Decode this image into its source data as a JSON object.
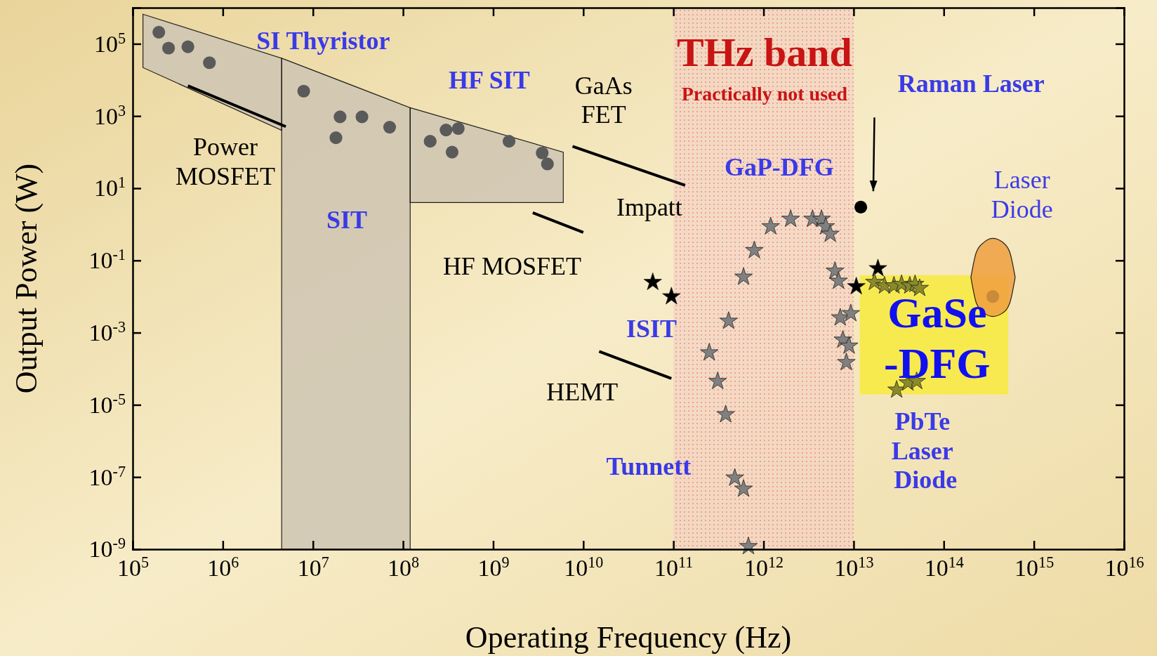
{
  "chart_data": {
    "type": "scatter",
    "xlabel": "Operating Frequency (Hz)",
    "ylabel": "Output Power (W)",
    "log": "xy",
    "grid": false,
    "xlim": [
      100000.0,
      1e+16
    ],
    "ylim": [
      1e-09,
      1000000.0
    ],
    "xticks": [
      {
        "value": 100000.0,
        "label": "10$^{5}$"
      },
      {
        "value": 1000000.0,
        "label": "10$^{6}$"
      },
      {
        "value": 10000000.0,
        "label": "10$^{7}$"
      },
      {
        "value": 100000000.0,
        "label": "10$^{8}$"
      },
      {
        "value": 1000000000.0,
        "label": "10$^{9}$"
      },
      {
        "value": 10000000000.0,
        "label": "10$^{10}$"
      },
      {
        "value": 100000000000.0,
        "label": "10$^{11}$"
      },
      {
        "value": 1000000000000.0,
        "label": "10$^{12}$"
      },
      {
        "value": 10000000000000.0,
        "label": "10$^{13}$"
      },
      {
        "value": 100000000000000.0,
        "label": "10$^{14}$"
      },
      {
        "value": 1000000000000000.0,
        "label": "10$^{15}$"
      },
      {
        "value": 1e+16,
        "label": "10$^{16}$"
      }
    ],
    "yticks": [
      {
        "value": 1e-09,
        "label": "10$^{-9}$"
      },
      {
        "value": 1e-07,
        "label": "10$^{-7}$"
      },
      {
        "value": 1e-05,
        "label": "10$^{-5}$"
      },
      {
        "value": 0.001,
        "label": "10$^{-3}$"
      },
      {
        "value": 0.1,
        "label": "10$^{-1}$"
      },
      {
        "value": 10,
        "label": "10$^{1}$"
      },
      {
        "value": 1000,
        "label": "10$^{3}$"
      },
      {
        "value": 100000.0,
        "label": "10$^{5}$"
      }
    ],
    "bands": [
      {
        "axis": "x",
        "from": 100000000000.0,
        "to": 10000000000000.0,
        "color": "#f4cfc4"
      }
    ],
    "series": [
      {
        "type": "area",
        "color": "#cfc6b4",
        "x": [
          130000.0,
          4500000.0
        ],
        "values": [
          null,
          null
        ],
        "upper": [
          660000.0,
          40000.0
        ],
        "lower": [
          22000.0,
          400.0
        ]
      },
      {
        "type": "area",
        "color": "#cfc6b4",
        "x": [
          4500000.0,
          120000000.0
        ],
        "values": [
          40000.0,
          1700.0
        ]
      },
      {
        "type": "area",
        "color": "#cfc6b4",
        "x": [
          120000000.0,
          6000000000.0
        ],
        "values": [
          null,
          null
        ],
        "upper": [
          1700.0,
          100.0
        ],
        "lower": [
          4,
          4
        ]
      },
      {
        "type": "area",
        "color": "#f0a040",
        "x": [
          200000000000000.0,
          230000000000000.0,
          280000000000000.0,
          350000000000000.0,
          450000000000000.0,
          540000000000000.0,
          620000000000000.0
        ],
        "values": [
          null,
          null,
          null,
          null,
          null,
          null,
          null
        ],
        "upper": [
          0.034,
          0.17,
          0.32,
          0.41,
          0.32,
          0.17,
          0.034
        ],
        "lower": [
          0.034,
          0.0066,
          0.0035,
          0.0028,
          0.0035,
          0.0066,
          0.034
        ]
      },
      {
        "type": "line",
        "color": "#000000",
        "line_style": "solid",
        "marker": "none",
        "x": [
          410000.0,
          5000000.0
        ],
        "values": [
          6900.0,
          510.0
        ]
      },
      {
        "type": "line",
        "color": "#000000",
        "line_style": "solid",
        "marker": "none",
        "x": [
          7600000000.0,
          135000000000.0
        ],
        "values": [
          145,
          12
        ]
      },
      {
        "type": "line",
        "color": "#000000",
        "line_style": "solid",
        "marker": "none",
        "x": [
          2750000000.0,
          10000000000.0
        ],
        "values": [
          2.1,
          0.6
        ]
      },
      {
        "type": "line",
        "color": "#000000",
        "line_style": "solid",
        "marker": "none",
        "x": [
          15000000000.0,
          95000000000.0
        ],
        "values": [
          0.0003,
          5.4e-05
        ]
      },
      {
        "marker": "circle",
        "color": "#5a5a5a",
        "x": [
          195000.0,
          250000.0,
          410000.0,
          710000.0,
          7900000.0,
          20000000.0,
          18000000.0,
          35000000.0,
          71000000.0,
          200000000.0,
          300000000.0,
          410000000.0,
          350000000.0,
          1500000000.0,
          3500000000.0,
          4000000000.0
        ],
        "values": [
          210000.0,
          76000.0,
          83000.0,
          30000.0,
          4900.0,
          950,
          250,
          950,
          490,
          200,
          410,
          450,
          100,
          200,
          95,
          47
        ]
      },
      {
        "marker": "circle",
        "color": "#000000",
        "x": [
          12000000000000.0
        ],
        "values": [
          3
        ]
      },
      {
        "marker": "circle",
        "color": "#c98a3a",
        "x": [
          350000000000000.0
        ],
        "values": [
          0.01
        ]
      },
      {
        "marker": "star",
        "color": "#000000",
        "x": [
          59000000000.0,
          95000000000.0,
          10700000000000.0,
          18600000000000.0
        ],
        "values": [
          0.025,
          0.01,
          0.019,
          0.06
        ]
      },
      {
        "marker": "star",
        "color": "#808080",
        "x": [
          680000000000.0,
          600000000000.0,
          480000000000.0,
          380000000000.0,
          310000000000.0,
          250000000000.0,
          410000000000.0,
          600000000000.0,
          790000000000.0,
          1200000000000.0,
          2000000000000.0,
          3500000000000.0,
          4400000000000.0,
          4900000000000.0,
          5500000000000.0,
          6200000000000.0,
          6800000000000.0,
          7100000000000.0,
          9300000000000.0,
          7600000000000.0,
          8900000000000.0,
          8300000000000.0
        ],
        "values": [
          1.2e-09,
          4.7e-08,
          9.5e-08,
          5.4e-06,
          4.5e-05,
          0.00028,
          0.0021,
          0.035,
          0.19,
          0.87,
          1.4,
          1.4,
          1.4,
          0.87,
          0.54,
          0.051,
          0.027,
          0.0026,
          0.0034,
          0.00063,
          0.00043,
          0.00015
        ]
      },
      {
        "marker": "star",
        "color": "#8a8a2a",
        "x": [
          17000000000000.0,
          22000000000000.0,
          28000000000000.0,
          34000000000000.0,
          42000000000000.0,
          48000000000000.0,
          54000000000000.0,
          30000000000000.0,
          40000000000000.0,
          50000000000000.0
        ],
        "values": [
          0.025,
          0.02,
          0.02,
          0.022,
          0.02,
          0.022,
          0.017,
          2.6e-05,
          4.1e-05,
          4.5e-05
        ]
      }
    ],
    "annotations": [
      "SI Thyristor",
      "HF SIT",
      "GaAs\nFET",
      {
        "text": "Power\nMOSFET",
        "x": 5000000.0,
        "y": 510
      },
      "SIT",
      "Impatt",
      "HF MOSFET",
      "ISIT",
      "HEMT",
      "Tunnett",
      "THz band",
      "Practically not used",
      "GaP-DFG",
      "Raman Laser",
      "Laser\nDiode",
      "GaSe\n-DFG",
      "PbTe\nLaser\n Diode"
    ]
  }
}
